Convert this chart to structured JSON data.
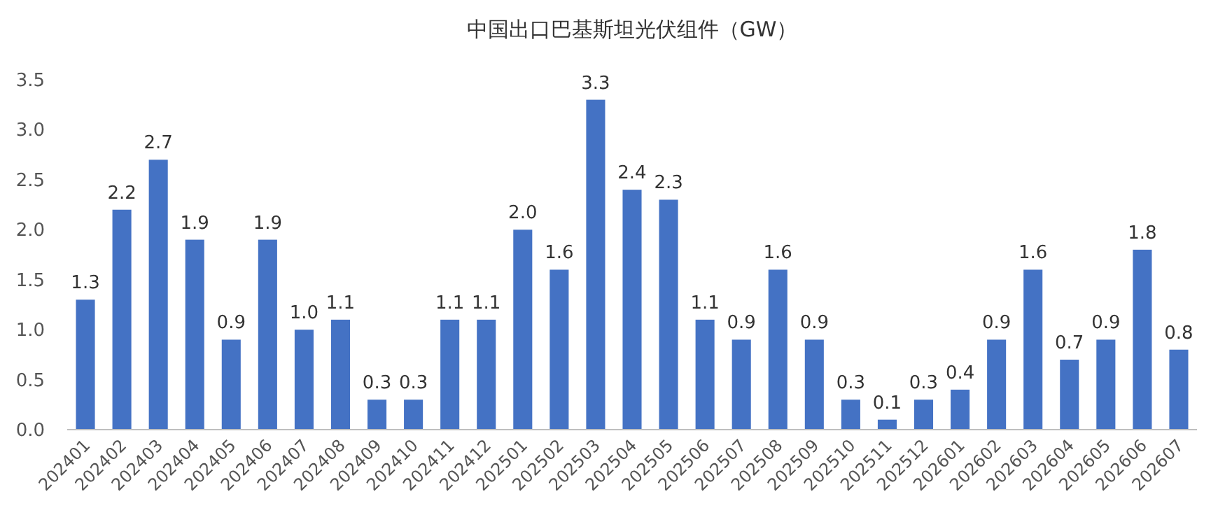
{
  "chart_data": {
    "type": "bar",
    "title": "中国出口巴基斯坦光伏组件（GW）",
    "categories": [
      "202401",
      "202402",
      "202403",
      "202404",
      "202405",
      "202406",
      "202407",
      "202408",
      "202409",
      "202410",
      "202411",
      "202412",
      "202501",
      "202502",
      "202503",
      "202504",
      "202505",
      "202506",
      "202507",
      "202508",
      "202509",
      "202510",
      "202511",
      "202512",
      "202601",
      "202602",
      "202603",
      "202604",
      "202605",
      "202606",
      "202607"
    ],
    "values": [
      1.3,
      2.2,
      2.7,
      1.9,
      0.9,
      1.9,
      1.0,
      1.1,
      0.3,
      0.3,
      1.1,
      1.1,
      2.0,
      1.6,
      3.3,
      2.4,
      2.3,
      1.1,
      0.9,
      1.6,
      0.9,
      0.3,
      0.1,
      0.3,
      0.4,
      0.9,
      1.6,
      0.7,
      0.9,
      1.8,
      0.8
    ],
    "color": "#4472c4",
    "ylim": [
      0,
      3.5
    ],
    "yticks": [
      {
        "value": 0,
        "label": "0.0"
      },
      {
        "value": 0.5,
        "label": "0.5"
      },
      {
        "value": 1,
        "label": "1.0"
      },
      {
        "value": 1.5,
        "label": "1.5"
      },
      {
        "value": 2,
        "label": "2.0"
      },
      {
        "value": 2.5,
        "label": "2.5"
      },
      {
        "value": 3,
        "label": "3.0"
      },
      {
        "value": 3.5,
        "label": "3.5"
      }
    ],
    "value_labels": [
      "1.3",
      "2.2",
      "2.7",
      "1.9",
      "0.9",
      "1.9",
      "1.0",
      "1.1",
      "0.3",
      "0.3",
      "1.1",
      "1.1",
      "2.0",
      "1.6",
      "3.3",
      "2.4",
      "2.3",
      "1.1",
      "0.9",
      "1.6",
      "0.9",
      "0.3",
      "0.1",
      "0.3",
      "0.4",
      "0.9",
      "1.6",
      "0.7",
      "0.9",
      "1.8",
      "0.8"
    ]
  }
}
